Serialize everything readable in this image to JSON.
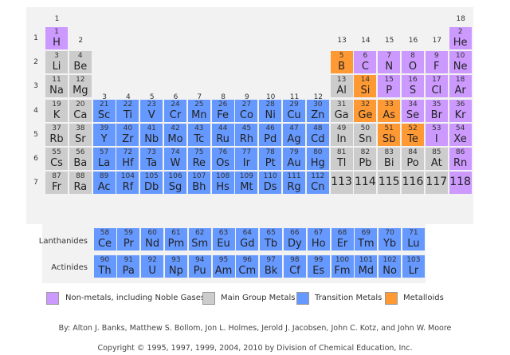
{
  "groups": [
    "1",
    "2",
    "3",
    "4",
    "5",
    "6",
    "7",
    "8",
    "9",
    "10",
    "11",
    "12",
    "13",
    "14",
    "15",
    "16",
    "17",
    "18"
  ],
  "periods": [
    "1",
    "2",
    "3",
    "4",
    "5",
    "6",
    "7"
  ],
  "colors": {
    "nm": "#cc99ff",
    "mg": "#cccccc",
    "tm": "#6699ff",
    "ml": "#ff9933"
  },
  "elements": [
    {
      "n": "1",
      "s": "H",
      "c": "nm",
      "r": 1,
      "g": 1
    },
    {
      "n": "2",
      "s": "He",
      "c": "nm",
      "r": 1,
      "g": 18
    },
    {
      "n": "3",
      "s": "Li",
      "c": "mg",
      "r": 2,
      "g": 1
    },
    {
      "n": "4",
      "s": "Be",
      "c": "mg",
      "r": 2,
      "g": 2
    },
    {
      "n": "5",
      "s": "B",
      "c": "ml",
      "r": 2,
      "g": 13
    },
    {
      "n": "6",
      "s": "C",
      "c": "nm",
      "r": 2,
      "g": 14
    },
    {
      "n": "7",
      "s": "N",
      "c": "nm",
      "r": 2,
      "g": 15
    },
    {
      "n": "8",
      "s": "O",
      "c": "nm",
      "r": 2,
      "g": 16
    },
    {
      "n": "9",
      "s": "F",
      "c": "nm",
      "r": 2,
      "g": 17
    },
    {
      "n": "10",
      "s": "Ne",
      "c": "nm",
      "r": 2,
      "g": 18
    },
    {
      "n": "11",
      "s": "Na",
      "c": "mg",
      "r": 3,
      "g": 1
    },
    {
      "n": "12",
      "s": "Mg",
      "c": "mg",
      "r": 3,
      "g": 2
    },
    {
      "n": "13",
      "s": "Al",
      "c": "mg",
      "r": 3,
      "g": 13
    },
    {
      "n": "14",
      "s": "Si",
      "c": "ml",
      "r": 3,
      "g": 14
    },
    {
      "n": "15",
      "s": "P",
      "c": "nm",
      "r": 3,
      "g": 15
    },
    {
      "n": "16",
      "s": "S",
      "c": "nm",
      "r": 3,
      "g": 16
    },
    {
      "n": "17",
      "s": "Cl",
      "c": "nm",
      "r": 3,
      "g": 17
    },
    {
      "n": "18",
      "s": "Ar",
      "c": "nm",
      "r": 3,
      "g": 18
    },
    {
      "n": "19",
      "s": "K",
      "c": "mg",
      "r": 4,
      "g": 1
    },
    {
      "n": "20",
      "s": "Ca",
      "c": "mg",
      "r": 4,
      "g": 2
    },
    {
      "n": "21",
      "s": "Sc",
      "c": "tm",
      "r": 4,
      "g": 3
    },
    {
      "n": "22",
      "s": "Ti",
      "c": "tm",
      "r": 4,
      "g": 4
    },
    {
      "n": "23",
      "s": "V",
      "c": "tm",
      "r": 4,
      "g": 5
    },
    {
      "n": "24",
      "s": "Cr",
      "c": "tm",
      "r": 4,
      "g": 6
    },
    {
      "n": "25",
      "s": "Mn",
      "c": "tm",
      "r": 4,
      "g": 7
    },
    {
      "n": "26",
      "s": "Fe",
      "c": "tm",
      "r": 4,
      "g": 8
    },
    {
      "n": "27",
      "s": "Co",
      "c": "tm",
      "r": 4,
      "g": 9
    },
    {
      "n": "28",
      "s": "Ni",
      "c": "tm",
      "r": 4,
      "g": 10
    },
    {
      "n": "29",
      "s": "Cu",
      "c": "tm",
      "r": 4,
      "g": 11
    },
    {
      "n": "30",
      "s": "Zn",
      "c": "tm",
      "r": 4,
      "g": 12
    },
    {
      "n": "31",
      "s": "Ga",
      "c": "mg",
      "r": 4,
      "g": 13
    },
    {
      "n": "32",
      "s": "Ge",
      "c": "ml",
      "r": 4,
      "g": 14
    },
    {
      "n": "33",
      "s": "As",
      "c": "ml",
      "r": 4,
      "g": 15
    },
    {
      "n": "34",
      "s": "Se",
      "c": "nm",
      "r": 4,
      "g": 16
    },
    {
      "n": "35",
      "s": "Br",
      "c": "nm",
      "r": 4,
      "g": 17
    },
    {
      "n": "36",
      "s": "Kr",
      "c": "nm",
      "r": 4,
      "g": 18
    },
    {
      "n": "37",
      "s": "Rb",
      "c": "mg",
      "r": 5,
      "g": 1
    },
    {
      "n": "38",
      "s": "Sr",
      "c": "mg",
      "r": 5,
      "g": 2
    },
    {
      "n": "39",
      "s": "Y",
      "c": "tm",
      "r": 5,
      "g": 3
    },
    {
      "n": "40",
      "s": "Zr",
      "c": "tm",
      "r": 5,
      "g": 4
    },
    {
      "n": "41",
      "s": "Nb",
      "c": "tm",
      "r": 5,
      "g": 5
    },
    {
      "n": "42",
      "s": "Mo",
      "c": "tm",
      "r": 5,
      "g": 6
    },
    {
      "n": "43",
      "s": "Tc",
      "c": "tm",
      "r": 5,
      "g": 7
    },
    {
      "n": "44",
      "s": "Ru",
      "c": "tm",
      "r": 5,
      "g": 8
    },
    {
      "n": "45",
      "s": "Rh",
      "c": "tm",
      "r": 5,
      "g": 9
    },
    {
      "n": "46",
      "s": "Pd",
      "c": "tm",
      "r": 5,
      "g": 10
    },
    {
      "n": "47",
      "s": "Ag",
      "c": "tm",
      "r": 5,
      "g": 11
    },
    {
      "n": "48",
      "s": "Cd",
      "c": "tm",
      "r": 5,
      "g": 12
    },
    {
      "n": "49",
      "s": "In",
      "c": "mg",
      "r": 5,
      "g": 13
    },
    {
      "n": "50",
      "s": "Sn",
      "c": "mg",
      "r": 5,
      "g": 14
    },
    {
      "n": "51",
      "s": "Sb",
      "c": "ml",
      "r": 5,
      "g": 15
    },
    {
      "n": "52",
      "s": "Te",
      "c": "ml",
      "r": 5,
      "g": 16
    },
    {
      "n": "53",
      "s": "I",
      "c": "nm",
      "r": 5,
      "g": 17
    },
    {
      "n": "54",
      "s": "Xe",
      "c": "nm",
      "r": 5,
      "g": 18
    },
    {
      "n": "55",
      "s": "Cs",
      "c": "mg",
      "r": 6,
      "g": 1
    },
    {
      "n": "56",
      "s": "Ba",
      "c": "mg",
      "r": 6,
      "g": 2
    },
    {
      "n": "57",
      "s": "La",
      "c": "tm",
      "r": 6,
      "g": 3
    },
    {
      "n": "72",
      "s": "Hf",
      "c": "tm",
      "r": 6,
      "g": 4
    },
    {
      "n": "73",
      "s": "Ta",
      "c": "tm",
      "r": 6,
      "g": 5
    },
    {
      "n": "74",
      "s": "W",
      "c": "tm",
      "r": 6,
      "g": 6
    },
    {
      "n": "75",
      "s": "Re",
      "c": "tm",
      "r": 6,
      "g": 7
    },
    {
      "n": "76",
      "s": "Os",
      "c": "tm",
      "r": 6,
      "g": 8
    },
    {
      "n": "77",
      "s": "Ir",
      "c": "tm",
      "r": 6,
      "g": 9
    },
    {
      "n": "78",
      "s": "Pt",
      "c": "tm",
      "r": 6,
      "g": 10
    },
    {
      "n": "79",
      "s": "Au",
      "c": "tm",
      "r": 6,
      "g": 11
    },
    {
      "n": "80",
      "s": "Hg",
      "c": "tm",
      "r": 6,
      "g": 12
    },
    {
      "n": "81",
      "s": "Tl",
      "c": "mg",
      "r": 6,
      "g": 13
    },
    {
      "n": "82",
      "s": "Pb",
      "c": "mg",
      "r": 6,
      "g": 14
    },
    {
      "n": "83",
      "s": "Bi",
      "c": "mg",
      "r": 6,
      "g": 15
    },
    {
      "n": "84",
      "s": "Po",
      "c": "mg",
      "r": 6,
      "g": 16
    },
    {
      "n": "85",
      "s": "At",
      "c": "mg",
      "r": 6,
      "g": 17
    },
    {
      "n": "86",
      "s": "Rn",
      "c": "nm",
      "r": 6,
      "g": 18
    },
    {
      "n": "87",
      "s": "Fr",
      "c": "mg",
      "r": 7,
      "g": 1
    },
    {
      "n": "88",
      "s": "Ra",
      "c": "mg",
      "r": 7,
      "g": 2
    },
    {
      "n": "89",
      "s": "Ac",
      "c": "tm",
      "r": 7,
      "g": 3
    },
    {
      "n": "104",
      "s": "Rf",
      "c": "tm",
      "r": 7,
      "g": 4
    },
    {
      "n": "105",
      "s": "Db",
      "c": "tm",
      "r": 7,
      "g": 5
    },
    {
      "n": "106",
      "s": "Sg",
      "c": "tm",
      "r": 7,
      "g": 6
    },
    {
      "n": "107",
      "s": "Bh",
      "c": "tm",
      "r": 7,
      "g": 7
    },
    {
      "n": "108",
      "s": "Hs",
      "c": "tm",
      "r": 7,
      "g": 8
    },
    {
      "n": "109",
      "s": "Mt",
      "c": "tm",
      "r": 7,
      "g": 9
    },
    {
      "n": "110",
      "s": "Ds",
      "c": "tm",
      "r": 7,
      "g": 10
    },
    {
      "n": "111",
      "s": "Rg",
      "c": "tm",
      "r": 7,
      "g": 11
    },
    {
      "n": "112",
      "s": "Cn",
      "c": "tm",
      "r": 7,
      "g": 12
    },
    {
      "n": "113",
      "s": "",
      "c": "mg",
      "r": 7,
      "g": 13
    },
    {
      "n": "114",
      "s": "",
      "c": "mg",
      "r": 7,
      "g": 14
    },
    {
      "n": "115",
      "s": "",
      "c": "mg",
      "r": 7,
      "g": 15
    },
    {
      "n": "116",
      "s": "",
      "c": "mg",
      "r": 7,
      "g": 16
    },
    {
      "n": "117",
      "s": "",
      "c": "mg",
      "r": 7,
      "g": 17
    },
    {
      "n": "118",
      "s": "",
      "c": "nm",
      "r": 7,
      "g": 18
    }
  ],
  "lanthanides": {
    "label": "Lanthanides",
    "items": [
      {
        "n": "58",
        "s": "Ce"
      },
      {
        "n": "59",
        "s": "Pr"
      },
      {
        "n": "60",
        "s": "Nd"
      },
      {
        "n": "61",
        "s": "Pm"
      },
      {
        "n": "62",
        "s": "Sm"
      },
      {
        "n": "63",
        "s": "Eu"
      },
      {
        "n": "64",
        "s": "Gd"
      },
      {
        "n": "65",
        "s": "Tb"
      },
      {
        "n": "66",
        "s": "Dy"
      },
      {
        "n": "67",
        "s": "Ho"
      },
      {
        "n": "68",
        "s": "Er"
      },
      {
        "n": "69",
        "s": "Tm"
      },
      {
        "n": "70",
        "s": "Yb"
      },
      {
        "n": "71",
        "s": "Lu"
      }
    ]
  },
  "actinides": {
    "label": "Actinides",
    "items": [
      {
        "n": "90",
        "s": "Th"
      },
      {
        "n": "91",
        "s": "Pa"
      },
      {
        "n": "92",
        "s": "U"
      },
      {
        "n": "93",
        "s": "Np"
      },
      {
        "n": "94",
        "s": "Pu"
      },
      {
        "n": "95",
        "s": "Am"
      },
      {
        "n": "96",
        "s": "Cm"
      },
      {
        "n": "97",
        "s": "Bk"
      },
      {
        "n": "98",
        "s": "Cf"
      },
      {
        "n": "99",
        "s": "Es"
      },
      {
        "n": "100",
        "s": "Fm"
      },
      {
        "n": "101",
        "s": "Md"
      },
      {
        "n": "102",
        "s": "No"
      },
      {
        "n": "103",
        "s": "Lr"
      }
    ]
  },
  "legend": {
    "nonmetals": "Non-metals, including Noble Gases",
    "main_group": "Main Group Metals",
    "transition": "Transition Metals",
    "metalloids": "Metalloids"
  },
  "credits": {
    "authors": "By: Alton J. Banks, Matthew S. Bollom, Jon L. Holmes, Jerold J. Jacobsen, John C. Kotz, and John W. Moore",
    "copyright": "Copyright © 1995, 1997, 1999, 2004, 2010 by Division of Chemical Education, Inc."
  }
}
